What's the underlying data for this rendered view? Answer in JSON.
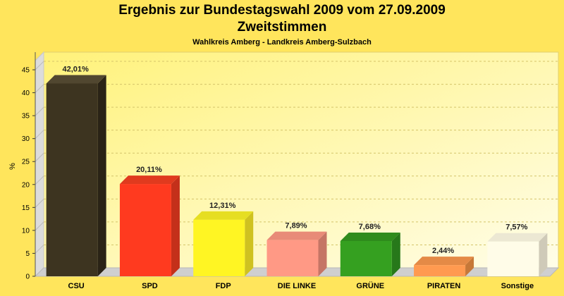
{
  "chart_data": {
    "type": "bar",
    "title": "Ergebnis zur Bundestagswahl 2009 vom 27.09.2009",
    "subtitle": "Zweitstimmen",
    "subsubtitle": "Wahlkreis Amberg - Landkreis Amberg-Sulzbach",
    "xlabel": "",
    "ylabel": "%",
    "ylim": [
      0,
      47
    ],
    "yticks": [
      0,
      5,
      10,
      15,
      20,
      25,
      30,
      35,
      40,
      45
    ],
    "grid": true,
    "categories": [
      "CSU",
      "SPD",
      "FDP",
      "DIE LINKE",
      "GRÜNE",
      "PIRATEN",
      "Sonstige"
    ],
    "values": [
      42.01,
      20.11,
      12.31,
      7.89,
      7.68,
      2.44,
      7.57
    ],
    "value_labels": [
      "42,01%",
      "20,11%",
      "12,31%",
      "7,89%",
      "7,68%",
      "2,44%",
      "7,57%"
    ],
    "colors": [
      "#3d3420",
      "#ff3a1f",
      "#fff523",
      "#ff9985",
      "#35a020",
      "#ff9a50",
      "#fffce8"
    ],
    "side_colors": [
      "#2a2316",
      "#c4301a",
      "#cfc220",
      "#c57565",
      "#27781a",
      "#c67838",
      "#cfcab8"
    ],
    "top_colors": [
      "#514730",
      "#e03a1e",
      "#e6de22",
      "#e88b78",
      "#2f8c1d",
      "#e48a46",
      "#ece8d3"
    ]
  }
}
